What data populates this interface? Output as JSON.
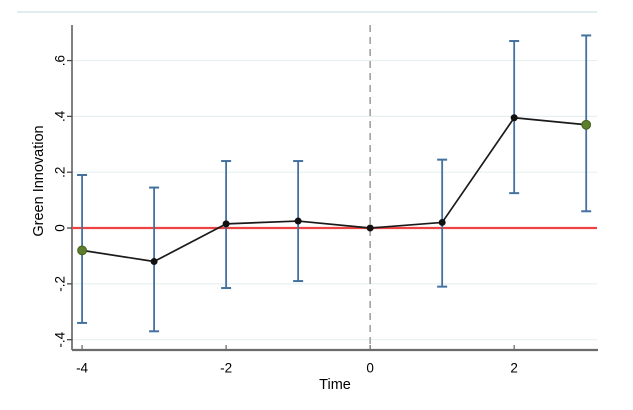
{
  "figure": {
    "type": "event-study-plot"
  },
  "chart_data": {
    "type": "line",
    "xlabel": "Time",
    "ylabel": "Green Innovation",
    "x": [
      -4,
      -3,
      -2,
      -1,
      0,
      1,
      2,
      3
    ],
    "series": [
      {
        "name": "estimate",
        "values": [
          -0.08,
          -0.12,
          0.015,
          0.025,
          0.0,
          0.02,
          0.395,
          0.37
        ]
      },
      {
        "name": "ci_lower",
        "values": [
          -0.34,
          -0.37,
          -0.215,
          -0.19,
          null,
          -0.21,
          0.125,
          0.06
        ]
      },
      {
        "name": "ci_upper",
        "values": [
          0.19,
          0.145,
          0.24,
          0.24,
          null,
          0.245,
          0.67,
          0.69
        ]
      }
    ],
    "marker_styles": [
      "highlight",
      "normal",
      "normal",
      "normal",
      "normal",
      "normal",
      "normal",
      "highlight"
    ],
    "xticks": [
      {
        "v": -4,
        "label": "-4"
      },
      {
        "v": -2,
        "label": "-2"
      },
      {
        "v": 0,
        "label": "0"
      },
      {
        "v": 2,
        "label": "2"
      }
    ],
    "yticks": [
      {
        "v": 0.6,
        "label": ".6"
      },
      {
        "v": 0.4,
        "label": ".4"
      },
      {
        "v": 0.2,
        "label": ".2"
      },
      {
        "v": 0.0,
        "label": "0"
      },
      {
        "v": -0.2,
        "label": "-.2"
      },
      {
        "v": -0.4,
        "label": "-.4"
      }
    ],
    "xlim": [
      -4.14,
      3.15
    ],
    "ylim": [
      -0.437,
      0.774
    ],
    "ref_lines": {
      "horizontal_y": 0,
      "vertical_x": 0
    },
    "grid": true,
    "legend": false,
    "colors": {
      "estimate_line": "#1a1a1a",
      "marker": "#111111",
      "marker_highlight": "#5d7e2c",
      "marker_highlight_edge": "#46621f",
      "ci": "#44719e",
      "zero_line": "#ee4343",
      "event_line": "#9b9b9b",
      "grid": "#e7f0f1",
      "axis_x": "#6b6b6b",
      "axis_y": "#4a4a4a",
      "frame_top": "#d8e7e7",
      "tick_text": "#000000"
    }
  }
}
